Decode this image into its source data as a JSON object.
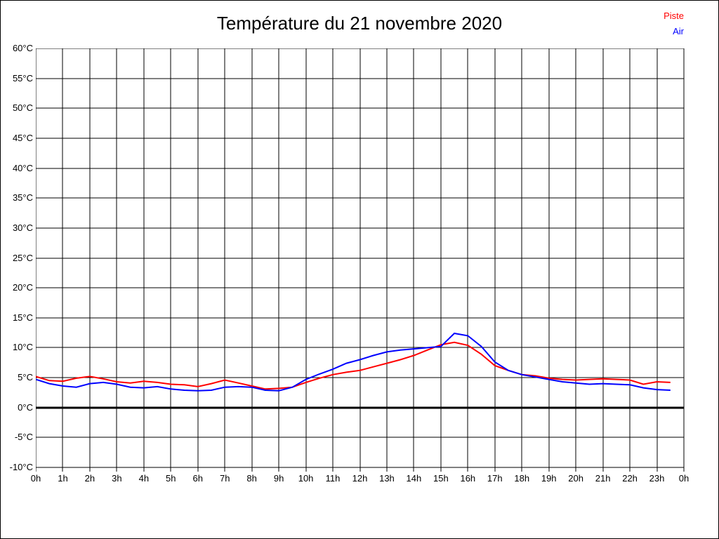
{
  "title": "Température du 21 novembre 2020",
  "legend": {
    "position": "top-right",
    "items": [
      {
        "label": "Piste",
        "color": "#ff0000"
      },
      {
        "label": "Air",
        "color": "#0000ff"
      }
    ]
  },
  "chart_data": {
    "type": "line",
    "title": "Température du 21 novembre 2020",
    "xlabel": "",
    "ylabel": "",
    "x_unit": "hour of day",
    "y_unit": "°C",
    "xlim": [
      0,
      24
    ],
    "ylim": [
      -10,
      60
    ],
    "y_tick_step": 5,
    "grid": true,
    "grid_color": "#000000",
    "zero_line_bold": true,
    "legend_position": "top-right",
    "x_tick_labels": [
      "0h",
      "1h",
      "2h",
      "3h",
      "4h",
      "5h",
      "6h",
      "7h",
      "8h",
      "9h",
      "10h",
      "11h",
      "12h",
      "13h",
      "14h",
      "15h",
      "16h",
      "17h",
      "18h",
      "19h",
      "20h",
      "21h",
      "22h",
      "23h",
      "0h"
    ],
    "y_tick_labels": [
      "60°C",
      "55°C",
      "50°C",
      "45°C",
      "40°C",
      "35°C",
      "30°C",
      "25°C",
      "20°C",
      "15°C",
      "10°C",
      "5°C",
      "0°C",
      "-5°C",
      "-10°C"
    ],
    "x": [
      0,
      0.5,
      1,
      1.5,
      2,
      2.5,
      3,
      3.5,
      4,
      4.5,
      5,
      5.5,
      6,
      6.5,
      7,
      7.5,
      8,
      8.5,
      9,
      9.5,
      10,
      10.5,
      11,
      11.5,
      12,
      12.5,
      13,
      13.5,
      14,
      14.5,
      15,
      15.5,
      16,
      16.5,
      17,
      17.5,
      18,
      18.5,
      19,
      19.5,
      20,
      20.5,
      21,
      21.5,
      22,
      22.5,
      23,
      23.5
    ],
    "series": [
      {
        "name": "Piste",
        "color": "#ff0000",
        "values": [
          5.2,
          4.5,
          4.4,
          4.9,
          5.2,
          4.8,
          4.3,
          4.1,
          4.4,
          4.2,
          3.9,
          3.8,
          3.5,
          4.0,
          4.6,
          4.1,
          3.6,
          3.1,
          3.2,
          3.4,
          4.2,
          4.9,
          5.5,
          5.9,
          6.2,
          6.8,
          7.4,
          8.0,
          8.7,
          9.6,
          10.5,
          10.9,
          10.4,
          8.9,
          7.0,
          6.2,
          5.5,
          5.3,
          4.9,
          4.7,
          4.6,
          4.7,
          4.8,
          4.7,
          4.6,
          3.9,
          4.3,
          4.2
        ]
      },
      {
        "name": "Air",
        "color": "#0000ff",
        "values": [
          4.7,
          4.0,
          3.6,
          3.4,
          4.0,
          4.2,
          3.9,
          3.4,
          3.3,
          3.5,
          3.1,
          2.9,
          2.8,
          2.9,
          3.4,
          3.5,
          3.4,
          2.9,
          2.8,
          3.4,
          4.7,
          5.6,
          6.4,
          7.4,
          8.0,
          8.7,
          9.3,
          9.6,
          9.8,
          10.0,
          10.2,
          12.4,
          12.0,
          10.2,
          7.6,
          6.2,
          5.5,
          5.1,
          4.7,
          4.3,
          4.1,
          3.9,
          4.0,
          3.9,
          3.8,
          3.3,
          3.0,
          2.9
        ]
      }
    ]
  }
}
